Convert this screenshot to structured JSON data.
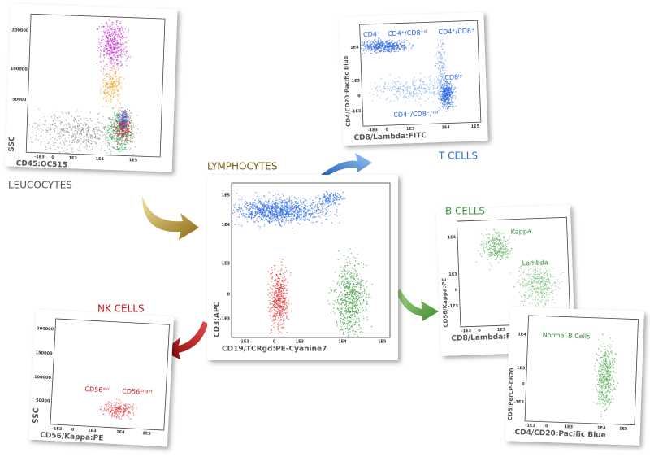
{
  "panels": {
    "leucocytes": {
      "caption": "LEUCOCYTES",
      "x_label": "CD45:OC515",
      "y_label": "SSC",
      "x_ticks": [
        "-1E3",
        "0",
        "1E3",
        "1E4",
        "1E5"
      ],
      "y_ticks": [
        "200000",
        "100000",
        "50000"
      ],
      "annotations": []
    },
    "t_cells": {
      "caption": "T CELLS",
      "x_label": "CD8/Lambda:FITC",
      "y_label": "CD4/CD20:Pacific Blue",
      "x_ticks": [
        "-1E3",
        "0",
        "1E3",
        "1E4",
        "1E5"
      ],
      "y_ticks": [
        "1E4",
        "1E3",
        "0",
        "-1E3"
      ],
      "annotations": [
        "CD4⁺",
        "CD4⁺/CD8⁺ᵈ",
        "CD4⁺/CD8⁺",
        "CD8ʰⁱ",
        "CD4⁻/CD8⁻/⁺ᵈ"
      ]
    },
    "lymphocytes": {
      "caption": "LYMPHOCYTES",
      "x_label": "CD19/TCRgd:PE-Cyanine7",
      "y_label": "CD3:APC",
      "x_ticks": [
        "-1E3",
        "0",
        "1E3",
        "1E4",
        "1E5"
      ],
      "y_ticks": [
        "1E5",
        "1E4",
        "1E3",
        "0",
        "-1E3"
      ],
      "annotations": []
    },
    "b_cells": {
      "caption": "B CELLS",
      "x_label": "CD8/Lambda:FITC",
      "y_label": "CD56/Kappa:PE",
      "x_ticks": [
        "-1E3",
        "0",
        "1E3",
        "1E4",
        "1E5"
      ],
      "y_ticks": [
        "1E4",
        "1E3",
        "0",
        "-1E3"
      ],
      "annotations": [
        "Kappa",
        "Lambda"
      ]
    },
    "normal_b_cells": {
      "x_label": "CD4/CD20:Pacific Blue",
      "y_label": "CD5:PerCP-C670",
      "x_ticks": [
        "-1E3",
        "0",
        "1E3",
        "1E4",
        "1E5"
      ],
      "y_ticks": [
        "1E4",
        "1E3",
        "0",
        "-1E3"
      ],
      "annotations": [
        "Normal B Cells"
      ]
    },
    "nk_cells": {
      "caption": "NK CELLS",
      "x_label": "CD56/Kappa:PE",
      "y_label": "SSC",
      "x_ticks": [
        "-1E3",
        "0",
        "1E3",
        "1E4",
        "1E5"
      ],
      "y_ticks": [
        "200000",
        "150000",
        "100000",
        "50000"
      ],
      "annotations": [
        "CD56ᵈⁱᵐ",
        "CD56ᵇʳⁱᵍʰᵗ"
      ]
    }
  }
}
